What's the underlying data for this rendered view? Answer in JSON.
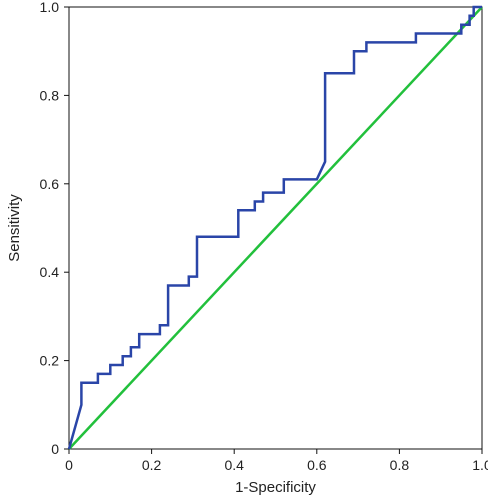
{
  "chart_data": {
    "type": "line",
    "title": "",
    "xlabel": "1-Specificity",
    "ylabel": "Sensitivity",
    "xlim": [
      0,
      1
    ],
    "ylim": [
      0,
      1
    ],
    "xticks": [
      {
        "value": 0,
        "label": "0"
      },
      {
        "value": 0.2,
        "label": "0.2"
      },
      {
        "value": 0.4,
        "label": "0.4"
      },
      {
        "value": 0.6,
        "label": "0.6"
      },
      {
        "value": 0.8,
        "label": "0.8"
      },
      {
        "value": 1.0,
        "label": "1.0"
      }
    ],
    "yticks": [
      {
        "value": 0,
        "label": "0"
      },
      {
        "value": 0.2,
        "label": "0.2"
      },
      {
        "value": 0.4,
        "label": "0.4"
      },
      {
        "value": 0.6,
        "label": "0.6"
      },
      {
        "value": 0.8,
        "label": "0.8"
      },
      {
        "value": 1.0,
        "label": "1.0"
      }
    ],
    "grid": false,
    "series": [
      {
        "color": "#2a45a8",
        "x": [
          0,
          0.03,
          0.03,
          0.07,
          0.07,
          0.1,
          0.1,
          0.13,
          0.13,
          0.15,
          0.15,
          0.17,
          0.17,
          0.22,
          0.22,
          0.24,
          0.24,
          0.29,
          0.29,
          0.31,
          0.31,
          0.41,
          0.41,
          0.45,
          0.45,
          0.47,
          0.47,
          0.52,
          0.52,
          0.6,
          0.6,
          0.62,
          0.62,
          0.69,
          0.69,
          0.72,
          0.72,
          0.84,
          0.84,
          0.95,
          0.95,
          0.97,
          0.97,
          0.98,
          0.98,
          1.0
        ],
        "y": [
          0,
          0.1,
          0.15,
          0.15,
          0.17,
          0.17,
          0.19,
          0.19,
          0.21,
          0.21,
          0.23,
          0.23,
          0.26,
          0.26,
          0.28,
          0.28,
          0.37,
          0.37,
          0.39,
          0.39,
          0.48,
          0.48,
          0.54,
          0.54,
          0.56,
          0.56,
          0.58,
          0.58,
          0.61,
          0.61,
          0.61,
          0.65,
          0.85,
          0.85,
          0.9,
          0.9,
          0.92,
          0.92,
          0.94,
          0.94,
          0.96,
          0.96,
          0.98,
          0.98,
          1.0,
          1.0
        ]
      },
      {
        "color": "#22c03c",
        "x": [
          0,
          1
        ],
        "y": [
          0,
          1
        ]
      }
    ]
  }
}
